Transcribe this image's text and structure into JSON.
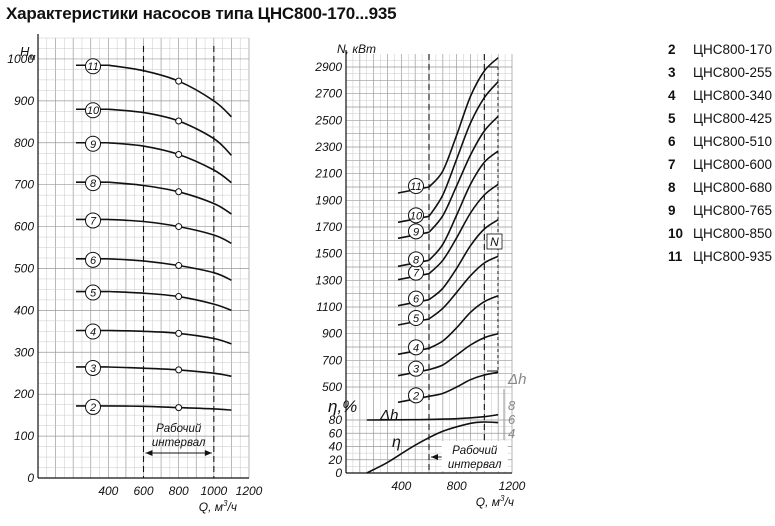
{
  "title": "Характеристики насосов типа ЦНС800-170...935",
  "legend": [
    {
      "num": "2",
      "name": "ЦНС800-170"
    },
    {
      "num": "3",
      "name": "ЦНС800-255"
    },
    {
      "num": "4",
      "name": "ЦНС800-340"
    },
    {
      "num": "5",
      "name": "ЦНС800-425"
    },
    {
      "num": "6",
      "name": "ЦНС800-510"
    },
    {
      "num": "7",
      "name": "ЦНС800-600"
    },
    {
      "num": "8",
      "name": "ЦНС800-680"
    },
    {
      "num": "9",
      "name": "ЦНС800-765"
    },
    {
      "num": "10",
      "name": "ЦНС800-850"
    },
    {
      "num": "11",
      "name": "ЦНС800-935"
    }
  ],
  "chart_data": [
    {
      "type": "line",
      "title": "",
      "ylabel_main": "H",
      "ylabel_sub": "м",
      "xlabel_main": "Q, м",
      "xlabel_sup": "3",
      "xlabel_tail": "/ч",
      "xlim": [
        0,
        1200
      ],
      "ylim": [
        0,
        1050
      ],
      "x_ticks": [
        400,
        600,
        800,
        1000,
        1200
      ],
      "y_ticks": [
        0,
        100,
        200,
        300,
        400,
        500,
        600,
        700,
        800,
        900,
        1000
      ],
      "grid": true,
      "working_range": [
        600,
        1000
      ],
      "working_range_label": [
        "Рабочий",
        "интервал"
      ],
      "series": [
        {
          "name": "2",
          "x": [
            400,
            600,
            800,
            1000,
            1100
          ],
          "y": [
            172,
            171,
            168,
            165,
            162
          ]
        },
        {
          "name": "3",
          "x": [
            400,
            600,
            800,
            1000,
            1100
          ],
          "y": [
            265,
            262,
            258,
            250,
            243
          ]
        },
        {
          "name": "4",
          "x": [
            400,
            600,
            800,
            1000,
            1100
          ],
          "y": [
            352,
            350,
            345,
            333,
            320
          ]
        },
        {
          "name": "5",
          "x": [
            400,
            600,
            800,
            1000,
            1100
          ],
          "y": [
            445,
            441,
            433,
            415,
            400
          ]
        },
        {
          "name": "6",
          "x": [
            400,
            600,
            800,
            1000,
            1100
          ],
          "y": [
            523,
            518,
            507,
            490,
            472
          ]
        },
        {
          "name": "7",
          "x": [
            400,
            600,
            800,
            1000,
            1100
          ],
          "y": [
            617,
            612,
            600,
            580,
            560
          ]
        },
        {
          "name": "8",
          "x": [
            400,
            600,
            800,
            1000,
            1100
          ],
          "y": [
            706,
            698,
            683,
            655,
            630
          ]
        },
        {
          "name": "9",
          "x": [
            400,
            600,
            800,
            1000,
            1100
          ],
          "y": [
            800,
            792,
            772,
            735,
            705
          ]
        },
        {
          "name": "10",
          "x": [
            400,
            600,
            800,
            1000,
            1100
          ],
          "y": [
            880,
            872,
            852,
            810,
            770
          ]
        },
        {
          "name": "11",
          "x": [
            400,
            600,
            800,
            1000,
            1100
          ],
          "y": [
            985,
            972,
            947,
            900,
            862
          ]
        }
      ],
      "marker_x": 800
    },
    {
      "type": "line",
      "title": "",
      "ylabel_main": "N, кВт",
      "xlabel_main": "Q, м",
      "xlabel_sup": "3",
      "xlabel_tail": "/ч",
      "xlim": [
        0,
        1200
      ],
      "x_ticks": [
        400,
        800,
        1200
      ],
      "power_ylim": [
        400,
        3000
      ],
      "power_ticks": [
        500,
        700,
        900,
        1100,
        1300,
        1500,
        1700,
        1900,
        2100,
        2300,
        2500,
        2700,
        2900
      ],
      "eta_ylim": [
        0,
        105
      ],
      "eta_ticks": [
        0,
        20,
        40,
        60,
        80
      ],
      "eta_label": "η,%",
      "dh_label": "Δh",
      "dh_scale": [
        8,
        6,
        4
      ],
      "grid": true,
      "working_range": [
        600,
        1000
      ],
      "working_range_label": [
        "Рабочий",
        "интервал"
      ],
      "power_bracket_label": "N",
      "power_series": [
        {
          "name": "2",
          "x": [
            600,
            700,
            800,
            900,
            1000,
            1100
          ],
          "y": [
            430,
            452,
            500,
            555,
            590,
            610
          ]
        },
        {
          "name": "3",
          "x": [
            600,
            700,
            800,
            900,
            1000,
            1100
          ],
          "y": [
            630,
            665,
            740,
            815,
            870,
            900
          ]
        },
        {
          "name": "4",
          "x": [
            600,
            700,
            800,
            900,
            1000,
            1100
          ],
          "y": [
            790,
            845,
            945,
            1060,
            1140,
            1185
          ]
        },
        {
          "name": "5",
          "x": [
            600,
            700,
            800,
            900,
            1000,
            1100
          ],
          "y": [
            1010,
            1090,
            1210,
            1335,
            1430,
            1480
          ]
        },
        {
          "name": "6",
          "x": [
            600,
            700,
            800,
            900,
            1000,
            1100
          ],
          "y": [
            1155,
            1240,
            1390,
            1560,
            1685,
            1755
          ]
        },
        {
          "name": "7",
          "x": [
            600,
            700,
            800,
            900,
            1000,
            1100
          ],
          "y": [
            1350,
            1450,
            1620,
            1805,
            1940,
            2020
          ]
        },
        {
          "name": "8",
          "x": [
            600,
            700,
            800,
            900,
            1000,
            1100
          ],
          "y": [
            1450,
            1570,
            1790,
            2020,
            2185,
            2270
          ]
        },
        {
          "name": "9",
          "x": [
            600,
            700,
            800,
            900,
            1000,
            1100
          ],
          "y": [
            1660,
            1785,
            2010,
            2240,
            2420,
            2530
          ]
        },
        {
          "name": "10",
          "x": [
            600,
            700,
            800,
            900,
            1000,
            1100
          ],
          "y": [
            1780,
            1940,
            2210,
            2480,
            2670,
            2790
          ]
        },
        {
          "name": "11",
          "x": [
            600,
            700,
            800,
            900,
            1000,
            1100
          ],
          "y": [
            2000,
            2120,
            2390,
            2680,
            2870,
            2970
          ]
        }
      ],
      "eta_series": {
        "name": "η",
        "x": [
          150,
          300,
          500,
          700,
          900,
          1000,
          1100
        ],
        "y": [
          0,
          16,
          42,
          63,
          75,
          77,
          76
        ]
      },
      "dh_series": {
        "name": "Δh",
        "x": [
          150,
          500,
          800,
          1000,
          1100
        ],
        "y": [
          80,
          80.5,
          82,
          85,
          88
        ]
      }
    }
  ]
}
